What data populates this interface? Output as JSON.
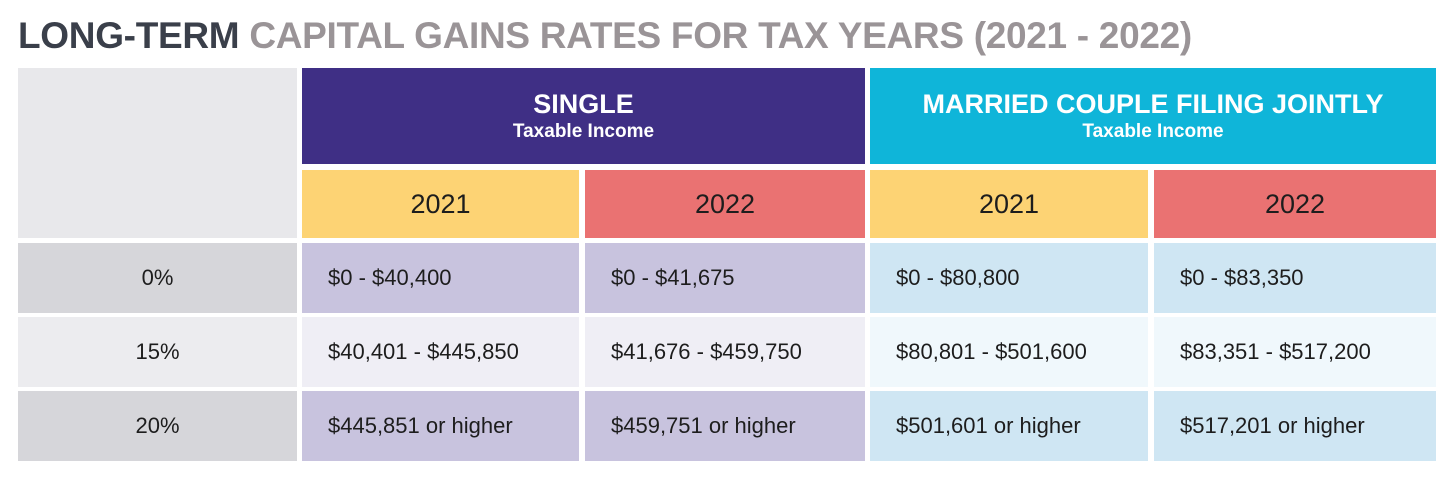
{
  "title": {
    "bold_part": "LONG-TERM",
    "rest": "CAPITAL GAINS RATES FOR TAX YEARS (2021 - 2022)"
  },
  "groups": {
    "single": {
      "title": "SINGLE",
      "subtitle": "Taxable Income"
    },
    "married": {
      "title": "MARRIED COUPLE FILING JOINTLY",
      "subtitle": "Taxable Income"
    }
  },
  "years": [
    "2021",
    "2022",
    "2021",
    "2022"
  ],
  "rows": [
    {
      "rate": "0%",
      "single_2021": "$0 - $40,400",
      "single_2022": "$0 - $41,675",
      "married_2021": "$0 - $80,800",
      "married_2022": "$0 - $83,350"
    },
    {
      "rate": "15%",
      "single_2021": "$40,401 - $445,850",
      "single_2022": "$41,676 - $459,750",
      "married_2021": "$80,801 - $501,600",
      "married_2022": "$83,351 - $517,200"
    },
    {
      "rate": "20%",
      "single_2021": "$445,851 or higher",
      "single_2022": "$459,751 or higher",
      "married_2021": "$501,601 or higher",
      "married_2022": "$517,201 or higher"
    }
  ],
  "colors": {
    "single_header": "#3f2f85",
    "married_header": "#0fb5d9",
    "year_2021": "#fdd374",
    "year_2022": "#ea7272",
    "single_body": "#c8c3de",
    "married_body": "#cfe6f3",
    "title_dark": "#3a3f4a",
    "title_gray": "#9a9497"
  }
}
